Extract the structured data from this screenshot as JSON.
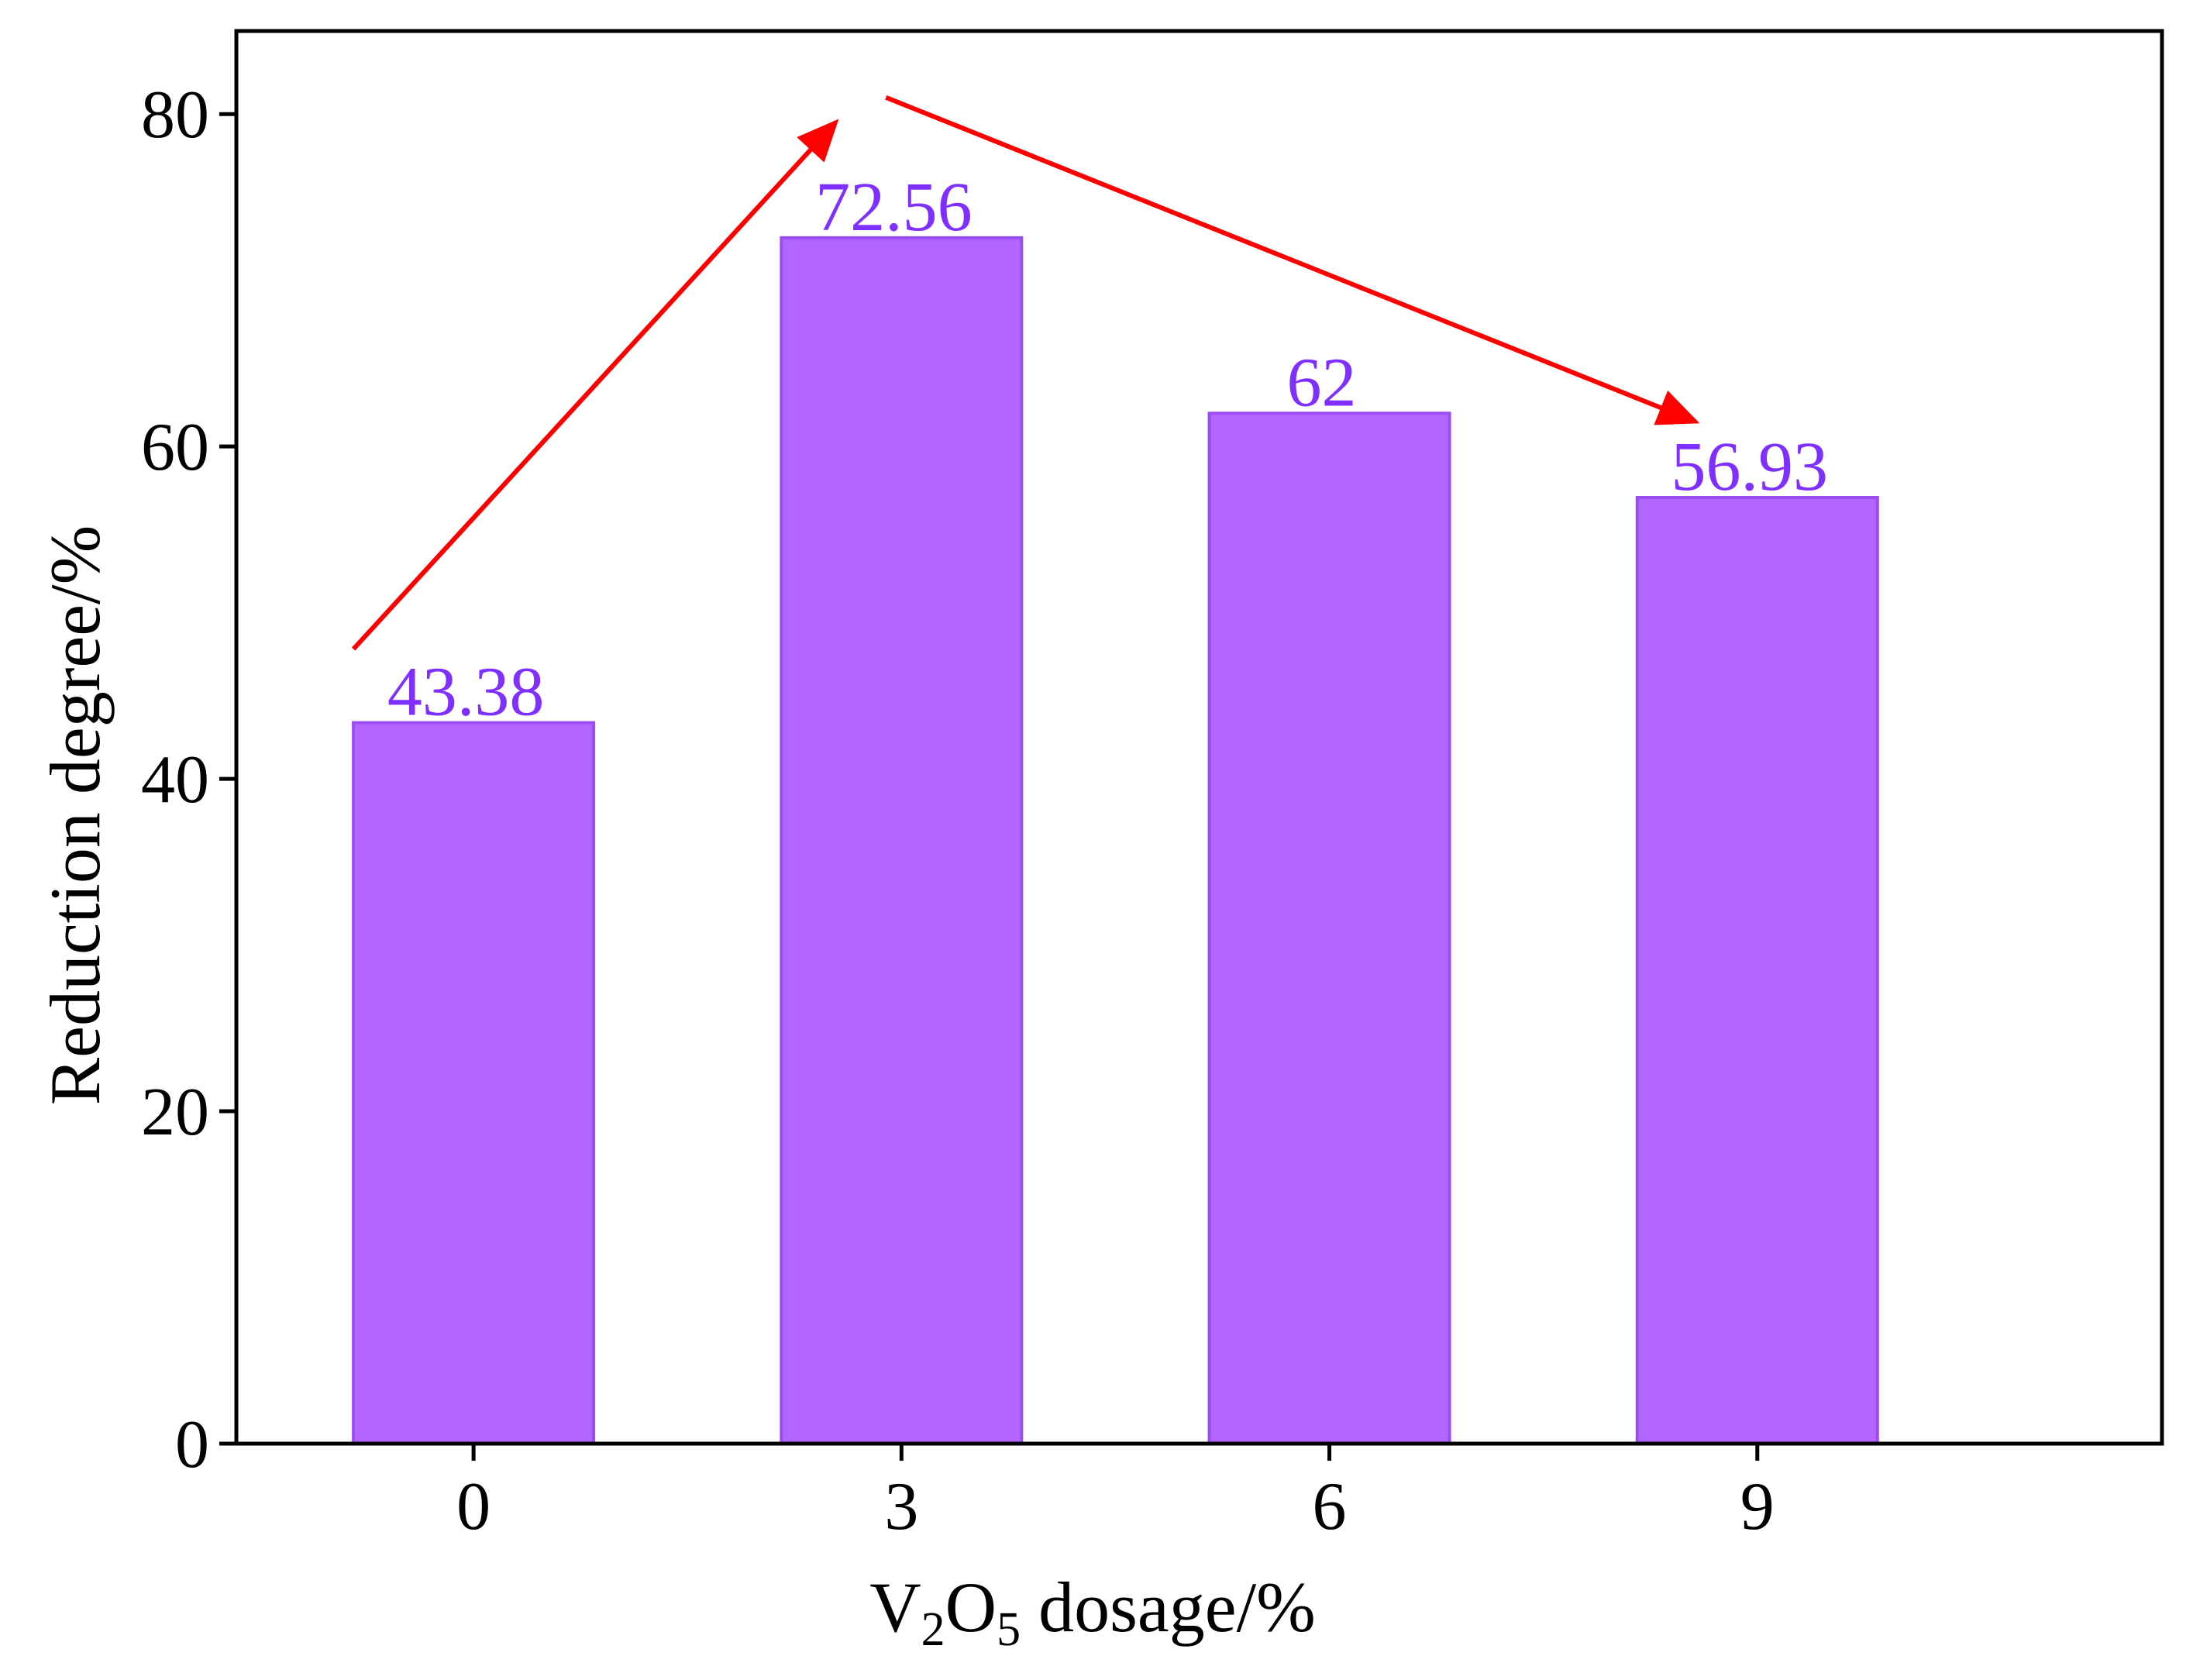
{
  "chart_data": {
    "type": "bar",
    "categories": [
      "0",
      "3",
      "6",
      "9"
    ],
    "values": [
      43.38,
      72.56,
      62,
      56.93
    ],
    "data_labels": [
      "43.38",
      "72.56",
      "62",
      "56.93"
    ],
    "title": "",
    "xlabel": {
      "base": "V",
      "sub1": "2",
      "mid": "O",
      "sub2": "5",
      "rest": " dosage/%"
    },
    "ylabel": "Reduction degree/%",
    "ylim": [
      0,
      85
    ],
    "yticks": [
      0,
      20,
      40,
      60,
      80
    ],
    "ytick_labels": [
      "0",
      "20",
      "40",
      "60",
      "80"
    ],
    "grid": false,
    "trend_arrows": [
      {
        "from_category": "0",
        "to_category": "3",
        "direction": "increase"
      },
      {
        "from_category": "3",
        "to_category": "9",
        "direction": "decrease"
      }
    ],
    "colors": {
      "bar_fill": "#b266ff",
      "bar_edge": "#9b4ef0",
      "label": "#7f2fff",
      "arrow": "#ff0000",
      "axis": "#000000"
    }
  }
}
